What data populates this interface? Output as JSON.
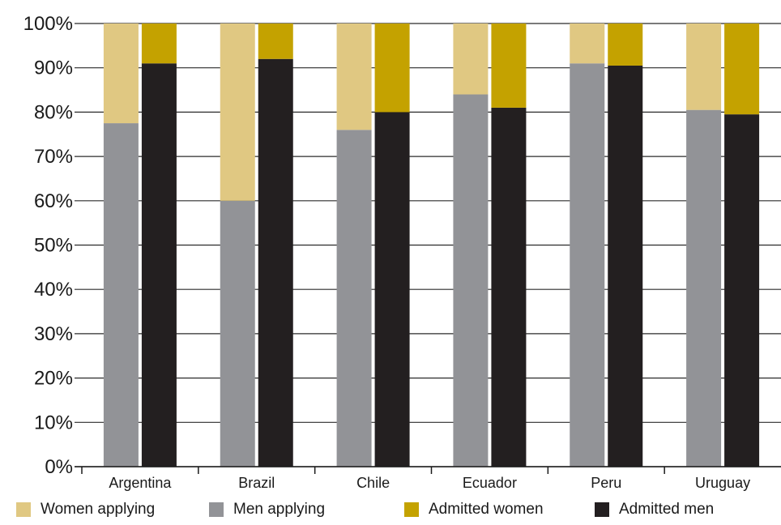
{
  "chart_data": {
    "type": "bar",
    "stacked": true,
    "grouped": true,
    "categories": [
      "Argentina",
      "Brazil",
      "Chile",
      "Ecuador",
      "Peru",
      "Uruguay"
    ],
    "ylim": [
      0,
      100
    ],
    "yticks": [
      "0%",
      "10%",
      "20%",
      "30%",
      "40%",
      "50%",
      "60%",
      "70%",
      "80%",
      "90%",
      "100%"
    ],
    "grid": true,
    "legend_position": "bottom",
    "groups": [
      {
        "stack": "applying",
        "series": [
          {
            "name": "Men applying",
            "color": "#929397",
            "values": [
              77.5,
              60,
              76,
              84,
              91,
              80.5
            ]
          },
          {
            "name": "Women applying",
            "color": "#e0c882",
            "values": [
              22.5,
              40,
              24,
              16,
              9,
              19.5
            ]
          }
        ]
      },
      {
        "stack": "admitted",
        "series": [
          {
            "name": "Admitted men",
            "color": "#231f20",
            "values": [
              91,
              92,
              80,
              81,
              90.5,
              79.5
            ]
          },
          {
            "name": "Admitted women",
            "color": "#c4a200",
            "values": [
              9,
              8,
              20,
              19,
              9.5,
              20.5
            ]
          }
        ]
      }
    ]
  },
  "legend": [
    {
      "label": "Women applying",
      "color": "#e0c882"
    },
    {
      "label": "Men applying",
      "color": "#929397"
    },
    {
      "label": "Admitted women",
      "color": "#c4a200"
    },
    {
      "label": "Admitted  men",
      "color": "#231f20"
    }
  ]
}
